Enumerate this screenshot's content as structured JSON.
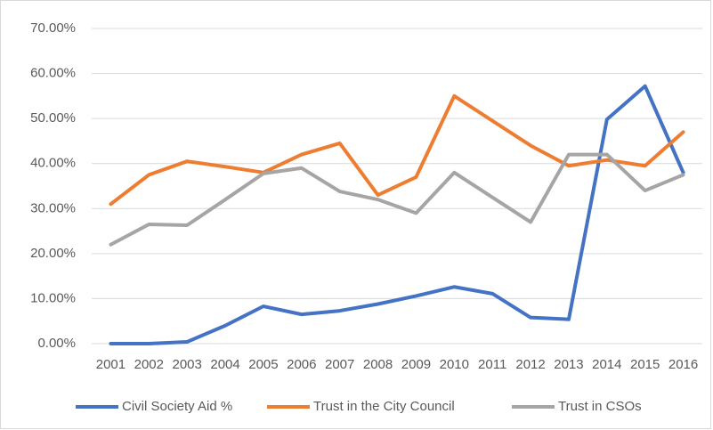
{
  "chart_data": {
    "type": "line",
    "categories": [
      "2001",
      "2002",
      "2003",
      "2004",
      "2005",
      "2006",
      "2007",
      "2008",
      "2009",
      "2010",
      "2011",
      "2012",
      "2013",
      "2014",
      "2015",
      "2016"
    ],
    "series": [
      {
        "name": "Civil Society Aid %",
        "color": "#4472c4",
        "values": [
          0,
          0,
          0.4,
          4,
          8.3,
          6.5,
          7.3,
          8.8,
          10.6,
          12.6,
          11.1,
          5.8,
          5.4,
          49.8,
          57.2,
          38
        ]
      },
      {
        "name": "Trust in the City Council",
        "color": "#ed7d31",
        "values": [
          31,
          37.5,
          40.5,
          39.3,
          38,
          42,
          44.5,
          33,
          37,
          55,
          49.5,
          44,
          39.5,
          40.8,
          39.5,
          47
        ]
      },
      {
        "name": "Trust in CSOs",
        "color": "#a5a5a5",
        "values": [
          22,
          26.5,
          26.3,
          32,
          37.8,
          39,
          33.8,
          32,
          29,
          38,
          32.5,
          27,
          42,
          42,
          34,
          37.5
        ]
      }
    ],
    "ylim": [
      0,
      70
    ],
    "yticks": [
      {
        "value": 0,
        "label": "0.00%"
      },
      {
        "value": 10,
        "label": "10.00%"
      },
      {
        "value": 20,
        "label": "20.00%"
      },
      {
        "value": 30,
        "label": "30.00%"
      },
      {
        "value": 40,
        "label": "40.00%"
      },
      {
        "value": 50,
        "label": "50.00%"
      },
      {
        "value": 60,
        "label": "60.00%"
      },
      {
        "value": 70,
        "label": "70.00%"
      }
    ],
    "grid": true,
    "legend": "bottom"
  }
}
